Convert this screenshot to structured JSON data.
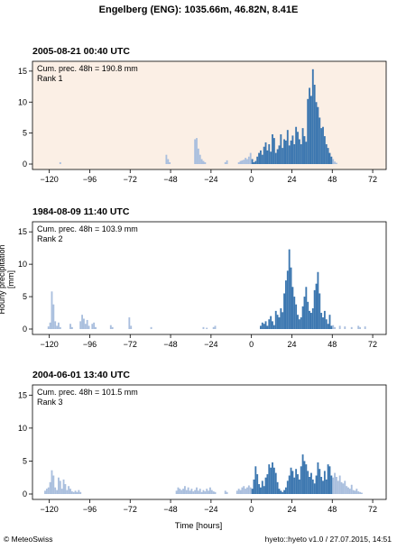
{
  "header": {
    "title": "Engelberg (ENG): 1035.66m, 46.82N, 8.41E"
  },
  "axes": {
    "ylabel": "Hourly precipitation [mm]",
    "xlabel": "Time [hours]"
  },
  "footer": {
    "left": "© MeteoSwiss",
    "right": "hyeto::hyeto v1.0 / 27.07.2015, 14:51"
  },
  "colors": {
    "event_bar": "#3c77b0",
    "context_bar": "#aabfde",
    "highlight_bg": "#fbefe5"
  },
  "chart_data": [
    {
      "type": "bar",
      "title": "2005-08-21 00:40 UTC",
      "annotation": [
        "Cum. prec. 48h = 190.8 mm",
        "Rank 1"
      ],
      "highlighted": true,
      "xlim": [
        -130,
        80
      ],
      "ylim": [
        0,
        16
      ],
      "xticks": [
        -120,
        -96,
        -72,
        -48,
        -24,
        0,
        24,
        48,
        72
      ],
      "yticks": [
        0,
        5,
        10,
        15
      ],
      "context_bars": [
        {
          "x": -114,
          "y": 0.3
        },
        {
          "x": -51,
          "y": 1.5
        },
        {
          "x": -50,
          "y": 0.8
        },
        {
          "x": -49,
          "y": 0.3
        },
        {
          "x": -34,
          "y": 4.0
        },
        {
          "x": -33,
          "y": 4.2
        },
        {
          "x": -32,
          "y": 2.5
        },
        {
          "x": -31,
          "y": 1.5
        },
        {
          "x": -30,
          "y": 0.8
        },
        {
          "x": -29,
          "y": 0.5
        },
        {
          "x": -28,
          "y": 0.3
        },
        {
          "x": -16,
          "y": 0.3
        },
        {
          "x": -15,
          "y": 0.6
        },
        {
          "x": -8,
          "y": 0.3
        },
        {
          "x": -7,
          "y": 0.5
        },
        {
          "x": -6,
          "y": 0.6
        },
        {
          "x": -5,
          "y": 0.7
        },
        {
          "x": -4,
          "y": 1.0
        },
        {
          "x": -3,
          "y": 0.8
        },
        {
          "x": -2,
          "y": 1.2
        },
        {
          "x": -1,
          "y": 1.8
        },
        {
          "x": 48,
          "y": 0.8
        },
        {
          "x": 49,
          "y": 0.4
        },
        {
          "x": 50,
          "y": 0.2
        }
      ],
      "event_bars": [
        {
          "x": 0,
          "y": 0.8
        },
        {
          "x": 1,
          "y": 0.3
        },
        {
          "x": 2,
          "y": 0.5
        },
        {
          "x": 3,
          "y": 1.2
        },
        {
          "x": 4,
          "y": 1.8
        },
        {
          "x": 5,
          "y": 2.2
        },
        {
          "x": 6,
          "y": 1.5
        },
        {
          "x": 7,
          "y": 2.8
        },
        {
          "x": 8,
          "y": 3.5
        },
        {
          "x": 9,
          "y": 2.2
        },
        {
          "x": 10,
          "y": 3.2
        },
        {
          "x": 11,
          "y": 2.0
        },
        {
          "x": 12,
          "y": 4.8
        },
        {
          "x": 13,
          "y": 4.2
        },
        {
          "x": 14,
          "y": 1.8
        },
        {
          "x": 15,
          "y": 2.4
        },
        {
          "x": 16,
          "y": 3.0
        },
        {
          "x": 17,
          "y": 4.8
        },
        {
          "x": 18,
          "y": 2.6
        },
        {
          "x": 19,
          "y": 4.0
        },
        {
          "x": 20,
          "y": 3.8
        },
        {
          "x": 21,
          "y": 5.5
        },
        {
          "x": 22,
          "y": 3.0
        },
        {
          "x": 23,
          "y": 3.8
        },
        {
          "x": 24,
          "y": 4.6
        },
        {
          "x": 25,
          "y": 3.2
        },
        {
          "x": 26,
          "y": 6.0
        },
        {
          "x": 27,
          "y": 5.2
        },
        {
          "x": 28,
          "y": 4.0
        },
        {
          "x": 29,
          "y": 3.2
        },
        {
          "x": 30,
          "y": 5.8
        },
        {
          "x": 31,
          "y": 4.5
        },
        {
          "x": 32,
          "y": 3.6
        },
        {
          "x": 33,
          "y": 10.5
        },
        {
          "x": 34,
          "y": 12.3
        },
        {
          "x": 35,
          "y": 11.0
        },
        {
          "x": 36,
          "y": 15.3
        },
        {
          "x": 37,
          "y": 12.8
        },
        {
          "x": 38,
          "y": 10.0
        },
        {
          "x": 39,
          "y": 9.2
        },
        {
          "x": 40,
          "y": 7.5
        },
        {
          "x": 41,
          "y": 5.8
        },
        {
          "x": 42,
          "y": 6.0
        },
        {
          "x": 43,
          "y": 4.5
        },
        {
          "x": 44,
          "y": 3.2
        },
        {
          "x": 45,
          "y": 2.6
        },
        {
          "x": 46,
          "y": 1.8
        },
        {
          "x": 47,
          "y": 1.2
        }
      ]
    },
    {
      "type": "bar",
      "title": "1984-08-09 11:40 UTC",
      "annotation": [
        "Cum. prec. 48h = 103.9 mm",
        "Rank 2"
      ],
      "highlighted": false,
      "xlim": [
        -130,
        80
      ],
      "ylim": [
        0,
        16
      ],
      "xticks": [
        -120,
        -96,
        -72,
        -48,
        -24,
        0,
        24,
        48,
        72
      ],
      "yticks": [
        0,
        5,
        10,
        15
      ],
      "context_bars": [
        {
          "x": -121,
          "y": 0.4
        },
        {
          "x": -120,
          "y": 1.0
        },
        {
          "x": -119,
          "y": 5.8
        },
        {
          "x": -118,
          "y": 3.8
        },
        {
          "x": -117,
          "y": 1.2
        },
        {
          "x": -116,
          "y": 0.5
        },
        {
          "x": -115,
          "y": 1.0
        },
        {
          "x": -114,
          "y": 0.3
        },
        {
          "x": -108,
          "y": 0.8
        },
        {
          "x": -107,
          "y": 0.3
        },
        {
          "x": -102,
          "y": 1.2
        },
        {
          "x": -101,
          "y": 2.2
        },
        {
          "x": -100,
          "y": 1.6
        },
        {
          "x": -99,
          "y": 0.8
        },
        {
          "x": -98,
          "y": 1.4
        },
        {
          "x": -97,
          "y": 0.5
        },
        {
          "x": -95,
          "y": 0.8
        },
        {
          "x": -94,
          "y": 1.0
        },
        {
          "x": -93,
          "y": 0.3
        },
        {
          "x": -84,
          "y": 0.6
        },
        {
          "x": -83,
          "y": 0.3
        },
        {
          "x": -73,
          "y": 1.8
        },
        {
          "x": -72,
          "y": 0.5
        },
        {
          "x": -60,
          "y": 0.3
        },
        {
          "x": -29,
          "y": 0.3
        },
        {
          "x": -27,
          "y": 0.2
        },
        {
          "x": -23,
          "y": 0.3
        },
        {
          "x": -22,
          "y": 0.5
        },
        {
          "x": 48,
          "y": 0.6
        },
        {
          "x": 49,
          "y": 0.3
        },
        {
          "x": 52,
          "y": 0.5
        },
        {
          "x": 55,
          "y": 0.4
        },
        {
          "x": 59,
          "y": 0.3
        },
        {
          "x": 63,
          "y": 0.5
        },
        {
          "x": 64,
          "y": 0.3
        },
        {
          "x": 67,
          "y": 0.4
        }
      ],
      "event_bars": [
        {
          "x": 5,
          "y": 0.5
        },
        {
          "x": 6,
          "y": 1.0
        },
        {
          "x": 7,
          "y": 0.8
        },
        {
          "x": 8,
          "y": 1.2
        },
        {
          "x": 9,
          "y": 0.5
        },
        {
          "x": 10,
          "y": 1.5
        },
        {
          "x": 11,
          "y": 2.0
        },
        {
          "x": 12,
          "y": 1.2
        },
        {
          "x": 13,
          "y": 0.6
        },
        {
          "x": 14,
          "y": 2.8
        },
        {
          "x": 15,
          "y": 2.2
        },
        {
          "x": 16,
          "y": 1.8
        },
        {
          "x": 17,
          "y": 3.2
        },
        {
          "x": 18,
          "y": 2.6
        },
        {
          "x": 19,
          "y": 5.5
        },
        {
          "x": 20,
          "y": 7.5
        },
        {
          "x": 21,
          "y": 9.0
        },
        {
          "x": 22,
          "y": 12.3
        },
        {
          "x": 23,
          "y": 9.5
        },
        {
          "x": 24,
          "y": 6.5
        },
        {
          "x": 25,
          "y": 5.0
        },
        {
          "x": 26,
          "y": 3.8
        },
        {
          "x": 27,
          "y": 2.2
        },
        {
          "x": 28,
          "y": 1.5
        },
        {
          "x": 29,
          "y": 1.8
        },
        {
          "x": 30,
          "y": 3.5
        },
        {
          "x": 31,
          "y": 5.0
        },
        {
          "x": 32,
          "y": 6.5
        },
        {
          "x": 33,
          "y": 4.2
        },
        {
          "x": 34,
          "y": 2.8
        },
        {
          "x": 35,
          "y": 2.5
        },
        {
          "x": 36,
          "y": 3.2
        },
        {
          "x": 37,
          "y": 6.0
        },
        {
          "x": 38,
          "y": 7.0
        },
        {
          "x": 39,
          "y": 8.8
        },
        {
          "x": 40,
          "y": 5.5
        },
        {
          "x": 41,
          "y": 2.5
        },
        {
          "x": 42,
          "y": 1.8
        },
        {
          "x": 43,
          "y": 2.8
        },
        {
          "x": 44,
          "y": 1.5
        },
        {
          "x": 45,
          "y": 0.8
        },
        {
          "x": 46,
          "y": 2.2
        },
        {
          "x": 47,
          "y": 0.5
        }
      ]
    },
    {
      "type": "bar",
      "title": "2004-06-01 13:40 UTC",
      "annotation": [
        "Cum. prec. 48h = 101.5 mm",
        "Rank 3"
      ],
      "highlighted": false,
      "xlim": [
        -130,
        80
      ],
      "ylim": [
        0,
        16
      ],
      "xticks": [
        -120,
        -96,
        -72,
        -48,
        -24,
        0,
        24,
        48,
        72
      ],
      "yticks": [
        0,
        5,
        10,
        15
      ],
      "context_bars": [
        {
          "x": -123,
          "y": 0.5
        },
        {
          "x": -122,
          "y": 0.8
        },
        {
          "x": -121,
          "y": 1.0
        },
        {
          "x": -120,
          "y": 1.8
        },
        {
          "x": -119,
          "y": 3.6
        },
        {
          "x": -118,
          "y": 2.8
        },
        {
          "x": -117,
          "y": 1.0
        },
        {
          "x": -116,
          "y": 0.6
        },
        {
          "x": -115,
          "y": 2.5
        },
        {
          "x": -114,
          "y": 2.0
        },
        {
          "x": -113,
          "y": 0.8
        },
        {
          "x": -112,
          "y": 2.2
        },
        {
          "x": -111,
          "y": 1.5
        },
        {
          "x": -110,
          "y": 0.6
        },
        {
          "x": -109,
          "y": 1.2
        },
        {
          "x": -108,
          "y": 0.8
        },
        {
          "x": -107,
          "y": 0.4
        },
        {
          "x": -106,
          "y": 0.3
        },
        {
          "x": -105,
          "y": 0.5
        },
        {
          "x": -104,
          "y": 0.3
        },
        {
          "x": -103,
          "y": 0.6
        },
        {
          "x": -102,
          "y": 0.3
        },
        {
          "x": -45,
          "y": 0.5
        },
        {
          "x": -44,
          "y": 1.0
        },
        {
          "x": -43,
          "y": 0.8
        },
        {
          "x": -42,
          "y": 0.6
        },
        {
          "x": -41,
          "y": 0.8
        },
        {
          "x": -40,
          "y": 1.2
        },
        {
          "x": -39,
          "y": 0.6
        },
        {
          "x": -38,
          "y": 1.0
        },
        {
          "x": -37,
          "y": 0.5
        },
        {
          "x": -36,
          "y": 0.8
        },
        {
          "x": -35,
          "y": 0.4
        },
        {
          "x": -34,
          "y": 0.6
        },
        {
          "x": -33,
          "y": 1.0
        },
        {
          "x": -32,
          "y": 0.5
        },
        {
          "x": -31,
          "y": 0.8
        },
        {
          "x": -30,
          "y": 0.3
        },
        {
          "x": -29,
          "y": 0.6
        },
        {
          "x": -28,
          "y": 0.4
        },
        {
          "x": -27,
          "y": 0.8
        },
        {
          "x": -26,
          "y": 0.5
        },
        {
          "x": -25,
          "y": 1.0
        },
        {
          "x": -24,
          "y": 0.6
        },
        {
          "x": -23,
          "y": 0.4
        },
        {
          "x": -22,
          "y": 0.3
        },
        {
          "x": -16,
          "y": 0.5
        },
        {
          "x": -15,
          "y": 0.3
        },
        {
          "x": -9,
          "y": 0.5
        },
        {
          "x": -8,
          "y": 0.8
        },
        {
          "x": -7,
          "y": 0.6
        },
        {
          "x": -6,
          "y": 1.0
        },
        {
          "x": -5,
          "y": 1.2
        },
        {
          "x": -4,
          "y": 0.8
        },
        {
          "x": -3,
          "y": 1.0
        },
        {
          "x": -2,
          "y": 1.3
        },
        {
          "x": -1,
          "y": 1.0
        },
        {
          "x": 48,
          "y": 2.5
        },
        {
          "x": 49,
          "y": 3.2
        },
        {
          "x": 50,
          "y": 2.6
        },
        {
          "x": 51,
          "y": 2.0
        },
        {
          "x": 52,
          "y": 2.8
        },
        {
          "x": 53,
          "y": 1.8
        },
        {
          "x": 54,
          "y": 1.6
        },
        {
          "x": 55,
          "y": 2.0
        },
        {
          "x": 56,
          "y": 1.2
        },
        {
          "x": 57,
          "y": 1.0
        },
        {
          "x": 58,
          "y": 0.8
        },
        {
          "x": 59,
          "y": 1.4
        },
        {
          "x": 60,
          "y": 0.6
        },
        {
          "x": 61,
          "y": 0.5
        },
        {
          "x": 62,
          "y": 0.8
        },
        {
          "x": 63,
          "y": 0.4
        },
        {
          "x": 64,
          "y": 0.3
        },
        {
          "x": 65,
          "y": 0.2
        }
      ],
      "event_bars": [
        {
          "x": 0,
          "y": 0.8
        },
        {
          "x": 1,
          "y": 2.2
        },
        {
          "x": 2,
          "y": 4.2
        },
        {
          "x": 3,
          "y": 3.0
        },
        {
          "x": 4,
          "y": 1.5
        },
        {
          "x": 5,
          "y": 1.0
        },
        {
          "x": 6,
          "y": 2.0
        },
        {
          "x": 7,
          "y": 1.2
        },
        {
          "x": 8,
          "y": 2.5
        },
        {
          "x": 9,
          "y": 3.0
        },
        {
          "x": 10,
          "y": 4.5
        },
        {
          "x": 11,
          "y": 4.0
        },
        {
          "x": 12,
          "y": 4.8
        },
        {
          "x": 13,
          "y": 4.0
        },
        {
          "x": 14,
          "y": 3.2
        },
        {
          "x": 15,
          "y": 1.8
        },
        {
          "x": 16,
          "y": 0.8
        },
        {
          "x": 17,
          "y": 0.5
        },
        {
          "x": 18,
          "y": 0.3
        },
        {
          "x": 19,
          "y": 0.6
        },
        {
          "x": 20,
          "y": 1.0
        },
        {
          "x": 21,
          "y": 2.0
        },
        {
          "x": 22,
          "y": 2.8
        },
        {
          "x": 23,
          "y": 4.0
        },
        {
          "x": 24,
          "y": 3.5
        },
        {
          "x": 25,
          "y": 2.5
        },
        {
          "x": 26,
          "y": 3.8
        },
        {
          "x": 27,
          "y": 3.0
        },
        {
          "x": 28,
          "y": 2.2
        },
        {
          "x": 29,
          "y": 4.2
        },
        {
          "x": 30,
          "y": 6.0
        },
        {
          "x": 31,
          "y": 5.0
        },
        {
          "x": 32,
          "y": 4.5
        },
        {
          "x": 33,
          "y": 3.5
        },
        {
          "x": 34,
          "y": 2.6
        },
        {
          "x": 35,
          "y": 3.2
        },
        {
          "x": 36,
          "y": 2.2
        },
        {
          "x": 37,
          "y": 1.6
        },
        {
          "x": 38,
          "y": 2.8
        },
        {
          "x": 39,
          "y": 4.8
        },
        {
          "x": 40,
          "y": 3.8
        },
        {
          "x": 41,
          "y": 2.6
        },
        {
          "x": 42,
          "y": 2.0
        },
        {
          "x": 43,
          "y": 3.5
        },
        {
          "x": 44,
          "y": 2.2
        },
        {
          "x": 45,
          "y": 4.5
        },
        {
          "x": 46,
          "y": 4.2
        },
        {
          "x": 47,
          "y": 2.8
        }
      ]
    }
  ]
}
